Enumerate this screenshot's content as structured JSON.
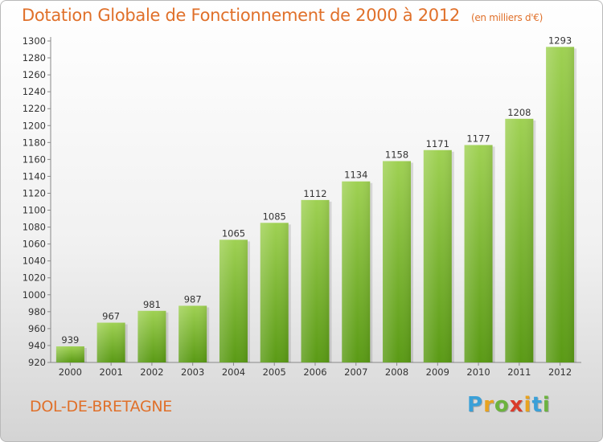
{
  "title": "Dotation Globale de Fonctionnement de 2000 à 2012",
  "subtitle": "(en milliers d'€)",
  "town": "DOL-DE-BRETAGNE",
  "logo": {
    "letters": [
      "P",
      "r",
      "o",
      "x",
      "i",
      "t",
      "i"
    ],
    "colors": [
      "#3aa0d8",
      "#e8a320",
      "#6cb33f",
      "#d93b2b",
      "#e8a320",
      "#3aa0d8",
      "#6cb33f"
    ]
  },
  "colors": {
    "bar_light": "#9fd153",
    "bar_dark": "#5a9a15",
    "title": "#e0702a"
  },
  "chart_data": {
    "type": "bar",
    "title": "Dotation Globale de Fonctionnement de 2000 à 2012",
    "subtitle": "(en milliers d'€)",
    "categories": [
      "2000",
      "2001",
      "2002",
      "2003",
      "2004",
      "2005",
      "2006",
      "2007",
      "2008",
      "2009",
      "2010",
      "2011",
      "2012"
    ],
    "values": [
      939,
      967,
      981,
      987,
      1065,
      1085,
      1112,
      1134,
      1158,
      1171,
      1177,
      1208,
      1293
    ],
    "ylim": [
      920,
      1300
    ],
    "yticks": [
      920,
      940,
      960,
      980,
      1000,
      1020,
      1040,
      1060,
      1080,
      1100,
      1120,
      1140,
      1160,
      1180,
      1200,
      1220,
      1240,
      1260,
      1280,
      1300
    ],
    "grid": false,
    "xlabel": "",
    "ylabel": ""
  }
}
